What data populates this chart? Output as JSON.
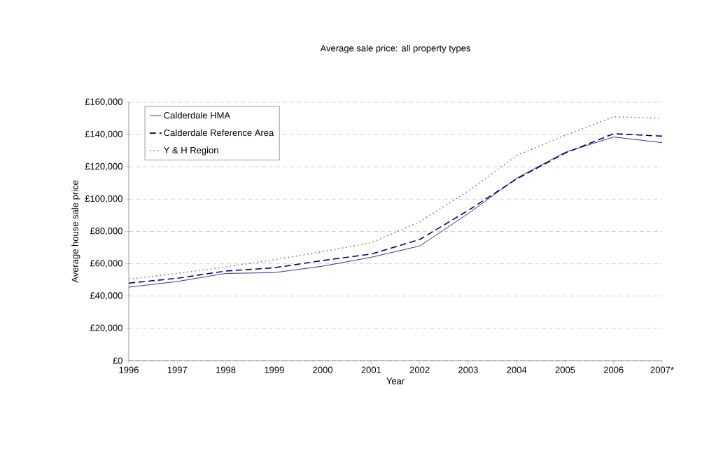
{
  "chart_data": {
    "type": "line",
    "title": "Average sale price: all property types",
    "xlabel": "Year",
    "ylabel": "Average house sale price",
    "categories": [
      "1996",
      "1997",
      "1998",
      "1999",
      "2000",
      "2001",
      "2002",
      "2003",
      "2004",
      "2005",
      "2006",
      "2007*"
    ],
    "series": [
      {
        "name": "Calderdale HMA",
        "color": "#333399",
        "line_style": "solid",
        "values": [
          45500,
          49000,
          54000,
          54500,
          58500,
          64000,
          71000,
          91000,
          113000,
          129000,
          138500,
          135000
        ]
      },
      {
        "name": "Calderdale Reference Area",
        "color": "#000080",
        "line_style": "dashed",
        "values": [
          48000,
          51000,
          55500,
          57500,
          62000,
          66000,
          75000,
          93000,
          112500,
          128500,
          140500,
          139000
        ]
      },
      {
        "name": "Y & H Region",
        "color": "#666699",
        "line_style": "dotted",
        "values": [
          50500,
          54000,
          58000,
          62500,
          67500,
          73000,
          86000,
          105000,
          127000,
          139500,
          151000,
          150000
        ]
      }
    ],
    "ylim": [
      0,
      160000
    ],
    "yticks": [
      {
        "value": 0,
        "label": "£0"
      },
      {
        "value": 20000,
        "label": "£20,000"
      },
      {
        "value": 40000,
        "label": "£40,000"
      },
      {
        "value": 60000,
        "label": "£60,000"
      },
      {
        "value": 80000,
        "label": "£80,000"
      },
      {
        "value": 100000,
        "label": "£100,000"
      },
      {
        "value": 120000,
        "label": "£120,000"
      },
      {
        "value": 140000,
        "label": "£140,000"
      },
      {
        "value": 160000,
        "label": "£160,000"
      }
    ],
    "grid": "y",
    "legend": "top left",
    "marker": "none"
  }
}
